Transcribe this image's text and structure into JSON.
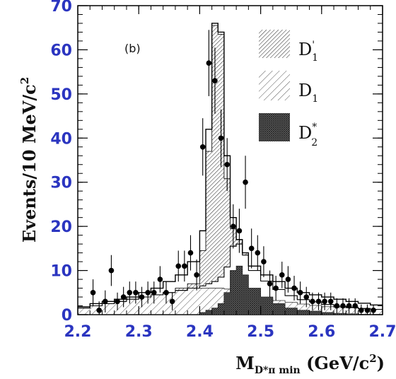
{
  "chart_data": {
    "type": "histogram",
    "panel_label": "(b)",
    "xlabel": {
      "main": "M",
      "sub": "D*π min",
      "units_open": " (GeV/c",
      "units_sup": "2",
      "units_close": ")"
    },
    "ylabel": {
      "main": "Events/10 MeV/c",
      "sup": "2"
    },
    "xlim": [
      2.2,
      2.7
    ],
    "ylim": [
      0,
      70
    ],
    "x_ticks": [
      2.2,
      2.3,
      2.4,
      2.5,
      2.6,
      2.7
    ],
    "x_tick_labels": [
      "2.2",
      "2.3",
      "2.4",
      "2.5",
      "2.6",
      "2.7"
    ],
    "y_ticks": [
      0,
      10,
      20,
      30,
      40,
      50,
      60,
      70
    ],
    "y_tick_labels": [
      "0",
      "10",
      "20",
      "30",
      "40",
      "50",
      "60",
      "70"
    ],
    "legend": [
      {
        "main": "D",
        "prime": "'",
        "sub": "1",
        "sup": "",
        "pattern": "dense-hatch"
      },
      {
        "main": "D",
        "prime": "",
        "sub": "1",
        "sup": "",
        "pattern": "sparse-hatch"
      },
      {
        "main": "D",
        "prime": "",
        "sub": "2",
        "sup": "*",
        "pattern": "crosshatch-dark"
      }
    ],
    "bin_edges": [
      2.2,
      2.22,
      2.24,
      2.26,
      2.28,
      2.3,
      2.32,
      2.34,
      2.36,
      2.38,
      2.4,
      2.41,
      2.42,
      2.43,
      2.44,
      2.45,
      2.46,
      2.47,
      2.48,
      2.5,
      2.52,
      2.54,
      2.56,
      2.58,
      2.6,
      2.62,
      2.64,
      2.66,
      2.68,
      2.7
    ],
    "series": [
      {
        "name": "D1 broad",
        "values": [
          1.5,
          2,
          2.5,
          3,
          3.5,
          4,
          4.5,
          5,
          5.5,
          6,
          6,
          6,
          6,
          6,
          5.8,
          5.5,
          5,
          4.5,
          4,
          3.6,
          3.2,
          2.8,
          2.4,
          2.1,
          1.8,
          1.6,
          1.5,
          1.3,
          1.2
        ]
      },
      {
        "name": "D'1",
        "values": [
          0,
          0,
          0,
          0,
          0,
          0,
          0,
          0,
          0.5,
          1,
          8,
          30,
          58,
          55,
          20,
          4,
          1,
          0.5,
          0,
          0,
          0,
          0,
          0,
          0,
          0,
          0,
          0,
          0,
          0
        ]
      },
      {
        "name": "D2*",
        "values": [
          0,
          0,
          0,
          0,
          0,
          0,
          0,
          0,
          0,
          0,
          0.5,
          1,
          1.5,
          2.5,
          5,
          10,
          11,
          9,
          6,
          4,
          2.5,
          1.5,
          1,
          0.8,
          0.5,
          0.3,
          0.2,
          0.1,
          0
        ]
      },
      {
        "name": "total",
        "values": [
          1.8,
          2.5,
          3,
          3.5,
          4,
          5,
          6,
          7.5,
          9,
          12,
          19,
          42,
          66,
          64,
          36,
          22,
          17,
          14,
          11,
          9,
          7.5,
          6,
          5,
          4.5,
          4,
          3.5,
          3,
          2.6,
          2.2
        ]
      }
    ],
    "data_points": {
      "x": [
        2.225,
        2.235,
        2.245,
        2.255,
        2.265,
        2.275,
        2.285,
        2.295,
        2.305,
        2.315,
        2.325,
        2.335,
        2.345,
        2.355,
        2.365,
        2.375,
        2.385,
        2.395,
        2.405,
        2.415,
        2.425,
        2.435,
        2.445,
        2.455,
        2.465,
        2.475,
        2.485,
        2.495,
        2.505,
        2.515,
        2.525,
        2.535,
        2.545,
        2.555,
        2.565,
        2.575,
        2.585,
        2.595,
        2.605,
        2.615,
        2.625,
        2.635,
        2.645,
        2.655,
        2.665,
        2.675,
        2.685
      ],
      "y": [
        5,
        1,
        3,
        10,
        3,
        4,
        5,
        5,
        4,
        5,
        5,
        8,
        5,
        3,
        11,
        11,
        14,
        9,
        38,
        57,
        53,
        40,
        34,
        20,
        19,
        30,
        15,
        14,
        12,
        7,
        6,
        9,
        8,
        6,
        5,
        4,
        3,
        3,
        3,
        3,
        2,
        2,
        2,
        2,
        1,
        1,
        1
      ],
      "err": [
        3,
        2,
        2.5,
        3.5,
        2,
        2.3,
        2.5,
        2.5,
        2.3,
        2.5,
        2.5,
        3,
        2.5,
        2,
        3.5,
        3.5,
        4,
        3.5,
        6.5,
        7.5,
        7.5,
        6.5,
        6,
        5,
        5,
        6,
        4.5,
        4,
        3.5,
        3,
        2.8,
        3,
        3,
        2.8,
        2.5,
        2.3,
        2,
        2,
        2,
        2,
        1.7,
        1.7,
        1.7,
        1.7,
        1.3,
        1.3,
        1.3
      ]
    }
  }
}
